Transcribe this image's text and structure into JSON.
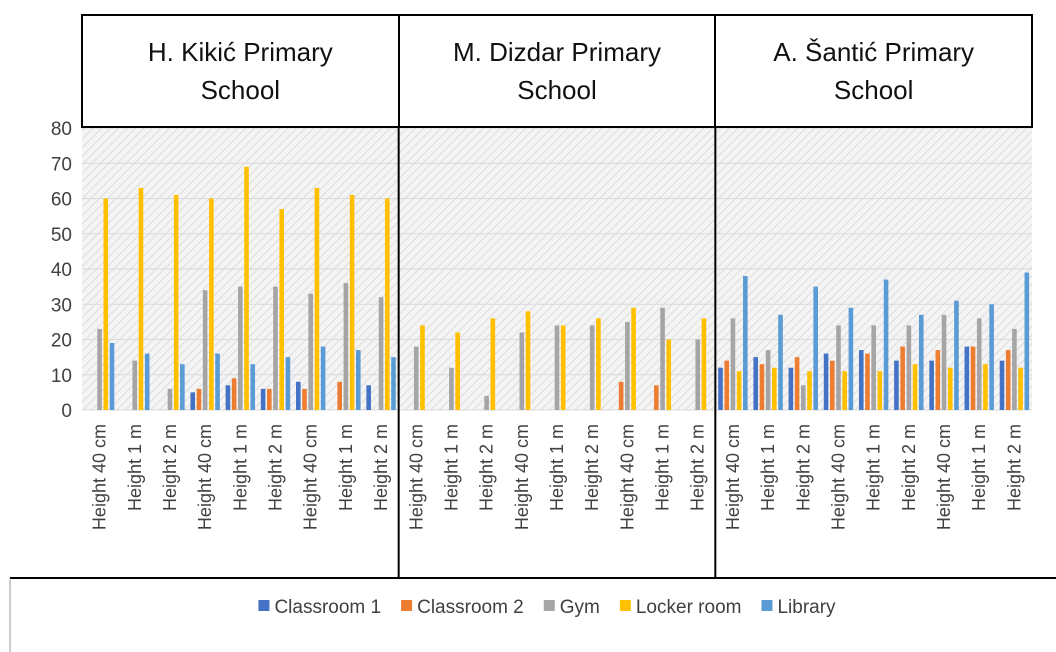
{
  "chart_data": {
    "type": "bar",
    "groups": [
      "H. Kikić Primary School",
      "M. Dizdar Primary School",
      "A. Šantić Primary School"
    ],
    "categories": [
      "Height 40 cm",
      "Height 1 m",
      "Height 2 m",
      "Height 40 cm",
      "Height 1 m",
      "Height 2 m",
      "Height 40 cm",
      "Height 1 m",
      "Height 2 m",
      "Height 40 cm",
      "Height 1 m",
      "Height 2 m",
      "Height 40 cm",
      "Height 1 m",
      "Height 2 m",
      "Height 40 cm",
      "Height 1 m",
      "Height 2 m",
      "Height 40 cm",
      "Height 1 m",
      "Height 2 m",
      "Height 40 cm",
      "Height 1 m",
      "Height 2 m",
      "Height 40 cm",
      "Height 1 m",
      "Height 2 m"
    ],
    "series": [
      {
        "name": "Classroom 1",
        "color": "#4472c4",
        "values": [
          0,
          0,
          0,
          5,
          7,
          6,
          8,
          0,
          7,
          0,
          0,
          0,
          0,
          0,
          0,
          0,
          0,
          0,
          12,
          15,
          12,
          16,
          17,
          14,
          14,
          18,
          14
        ]
      },
      {
        "name": "Classroom 2",
        "color": "#ed7d31",
        "values": [
          0,
          0,
          0,
          6,
          9,
          6,
          6,
          8,
          0,
          0,
          0,
          0,
          0,
          0,
          0,
          8,
          7,
          0,
          14,
          13,
          15,
          14,
          16,
          18,
          17,
          18,
          17
        ]
      },
      {
        "name": "Gym",
        "color": "#a5a5a5",
        "values": [
          23,
          14,
          6,
          34,
          35,
          35,
          33,
          36,
          32,
          18,
          12,
          4,
          22,
          24,
          24,
          25,
          29,
          20,
          26,
          17,
          7,
          24,
          24,
          24,
          27,
          26,
          23
        ]
      },
      {
        "name": "Locker room",
        "color": "#ffc000",
        "values": [
          60,
          63,
          61,
          60,
          69,
          57,
          63,
          61,
          60,
          24,
          22,
          26,
          28,
          24,
          26,
          29,
          20,
          26,
          11,
          12,
          11,
          11,
          11,
          13,
          12,
          13,
          12
        ]
      },
      {
        "name": "Library",
        "color": "#5b9bd5",
        "values": [
          19,
          16,
          13,
          16,
          13,
          15,
          18,
          17,
          15,
          0,
          0,
          0,
          0,
          0,
          0,
          0,
          0,
          0,
          38,
          27,
          35,
          29,
          37,
          27,
          31,
          30,
          39
        ]
      }
    ],
    "ylim": [
      0,
      80
    ],
    "yticks": [
      0,
      10,
      20,
      30,
      40,
      50,
      60,
      70,
      80
    ],
    "grid": true,
    "legend": "bottom"
  }
}
